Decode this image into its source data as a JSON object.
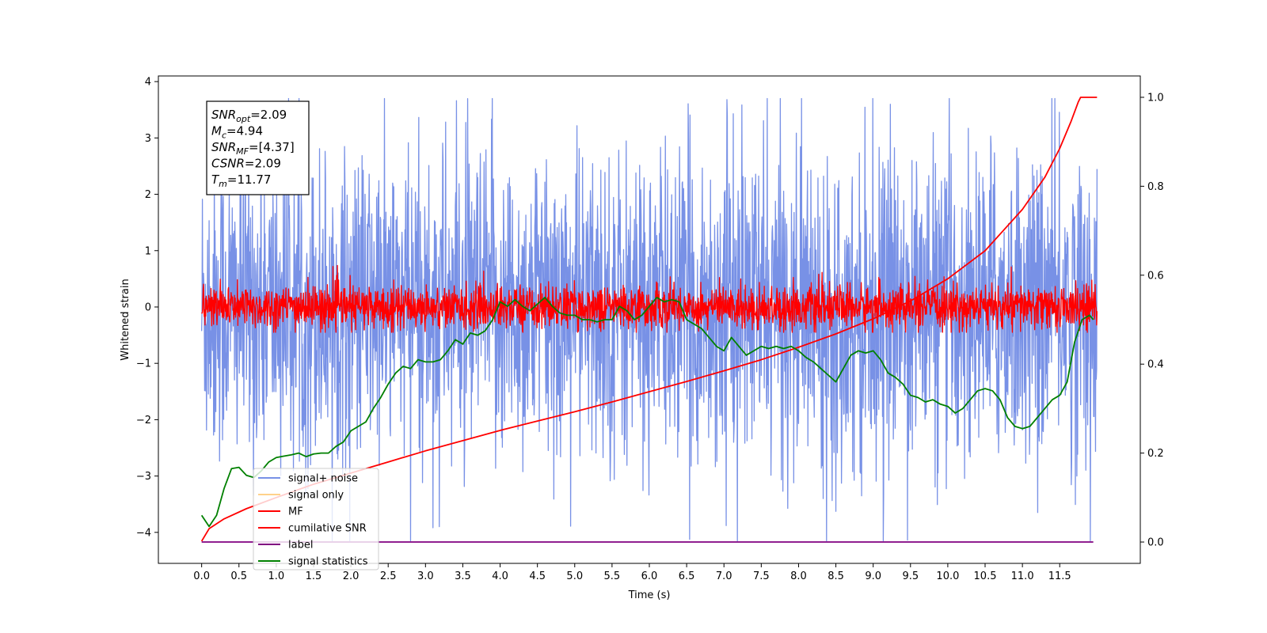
{
  "chart_data": {
    "type": "line",
    "title": "",
    "xlabel": "Time (s)",
    "ylabel": "Whitened strain",
    "y2label": "",
    "xlim": [
      -0.58,
      12.58
    ],
    "ylim": [
      -4.55,
      4.1
    ],
    "y2lim": [
      -0.048,
      1.048
    ],
    "x_ticks": [
      "0.0",
      "0.5",
      "1.0",
      "1.5",
      "2.0",
      "2.5",
      "3.0",
      "3.5",
      "4.0",
      "4.5",
      "5.0",
      "5.5",
      "6.0",
      "6.5",
      "7.0",
      "7.5",
      "8.0",
      "8.5",
      "9.0",
      "9.5",
      "10.0",
      "10.5",
      "11.0",
      "11.5"
    ],
    "y_ticks": [
      4,
      3,
      2,
      1,
      0,
      -1,
      -2,
      -3,
      -4
    ],
    "y_tick_labels": [
      "4",
      "3",
      "2",
      "1",
      "0",
      "−1",
      "−2",
      "−3",
      "−4"
    ],
    "y2_ticks": [
      1.0,
      0.8,
      0.6,
      0.4,
      0.2,
      0.0
    ],
    "y2_tick_labels": [
      "1.0",
      "0.8",
      "0.6",
      "0.4",
      "0.2",
      "0.0"
    ],
    "grid": false,
    "legend_position": "lower-left",
    "annotation": {
      "lines": [
        {
          "symbol": "SNR",
          "subscript": "opt",
          "value": "=2.09"
        },
        {
          "symbol": "M",
          "subscript": "c",
          "value": "=4.94"
        },
        {
          "symbol": "SNR",
          "subscript": "MF",
          "value": "=[4.37]"
        },
        {
          "symbol": "CSNR",
          "subscript": "",
          "value": "=2.09"
        },
        {
          "symbol": "T",
          "subscript": "m",
          "value": "=11.77"
        }
      ]
    },
    "series": [
      {
        "name": "signal+ noise",
        "color": "#7891e6",
        "axis": "left",
        "style": "noise",
        "x_range": [
          0,
          12.0
        ],
        "approx_band": [
          -2.5,
          2.5
        ],
        "peak_range": [
          -4.15,
          3.7
        ],
        "notable_spikes": [
          [
            2.8,
            -4.15
          ],
          [
            7.04,
            3.68
          ]
        ]
      },
      {
        "name": "signal only",
        "color": "#ffd18a",
        "axis": "left",
        "style": "hidden",
        "x": [
          0,
          12.0
        ],
        "y": [
          0,
          0
        ]
      },
      {
        "name": "MF",
        "color": "#ff0000",
        "axis": "left",
        "style": "noise",
        "x_range": [
          0,
          12.0
        ],
        "approx_band": [
          -0.35,
          0.35
        ],
        "peak_range": [
          -0.45,
          1.0
        ]
      },
      {
        "name": "cumilative SNR",
        "color": "#ff0000",
        "axis": "right",
        "style": "line",
        "x": [
          0.0,
          0.1,
          0.3,
          0.6,
          1.0,
          1.5,
          2.0,
          2.5,
          3.0,
          3.5,
          4.0,
          4.5,
          5.0,
          5.5,
          6.0,
          6.5,
          7.0,
          7.5,
          8.0,
          8.5,
          9.0,
          9.5,
          10.0,
          10.5,
          11.0,
          11.3,
          11.5,
          11.65,
          11.75,
          11.78,
          12.0
        ],
        "y": [
          0.002,
          0.03,
          0.052,
          0.075,
          0.1,
          0.13,
          0.155,
          0.18,
          0.205,
          0.228,
          0.251,
          0.272,
          0.293,
          0.315,
          0.338,
          0.361,
          0.385,
          0.41,
          0.438,
          0.468,
          0.502,
          0.542,
          0.592,
          0.655,
          0.748,
          0.82,
          0.885,
          0.945,
          0.99,
          1.0,
          1.0
        ]
      },
      {
        "name": "label",
        "color": "#800080",
        "axis": "right",
        "style": "line",
        "x": [
          0.0,
          11.95
        ],
        "y": [
          0.0,
          0.0
        ]
      },
      {
        "name": "signal statistics",
        "color": "#008000",
        "axis": "right",
        "style": "line",
        "x": [
          0.0,
          0.1,
          0.2,
          0.3,
          0.4,
          0.5,
          0.6,
          0.7,
          0.8,
          0.9,
          1.0,
          1.1,
          1.2,
          1.3,
          1.4,
          1.5,
          1.6,
          1.7,
          1.8,
          1.9,
          2.0,
          2.1,
          2.2,
          2.3,
          2.4,
          2.5,
          2.6,
          2.7,
          2.8,
          2.9,
          3.0,
          3.1,
          3.2,
          3.3,
          3.4,
          3.5,
          3.6,
          3.7,
          3.8,
          3.9,
          4.0,
          4.1,
          4.2,
          4.3,
          4.4,
          4.5,
          4.6,
          4.7,
          4.8,
          4.9,
          5.0,
          5.1,
          5.2,
          5.3,
          5.4,
          5.5,
          5.6,
          5.7,
          5.8,
          5.9,
          6.0,
          6.1,
          6.2,
          6.3,
          6.4,
          6.5,
          6.6,
          6.7,
          6.8,
          6.9,
          7.0,
          7.1,
          7.2,
          7.3,
          7.4,
          7.5,
          7.6,
          7.7,
          7.8,
          7.9,
          8.0,
          8.1,
          8.2,
          8.3,
          8.4,
          8.5,
          8.6,
          8.7,
          8.8,
          8.9,
          9.0,
          9.1,
          9.2,
          9.3,
          9.4,
          9.5,
          9.6,
          9.7,
          9.8,
          9.9,
          10.0,
          10.1,
          10.2,
          10.3,
          10.4,
          10.5,
          10.6,
          10.7,
          10.8,
          10.9,
          11.0,
          11.1,
          11.2,
          11.3,
          11.4,
          11.5,
          11.6,
          11.7,
          11.8,
          11.9,
          11.95
        ],
        "y": [
          0.06,
          0.035,
          0.06,
          0.12,
          0.165,
          0.168,
          0.15,
          0.145,
          0.16,
          0.18,
          0.19,
          0.193,
          0.196,
          0.2,
          0.192,
          0.198,
          0.2,
          0.2,
          0.215,
          0.225,
          0.25,
          0.26,
          0.27,
          0.3,
          0.325,
          0.355,
          0.38,
          0.395,
          0.39,
          0.41,
          0.405,
          0.405,
          0.41,
          0.43,
          0.455,
          0.445,
          0.47,
          0.465,
          0.475,
          0.5,
          0.54,
          0.53,
          0.545,
          0.53,
          0.52,
          0.535,
          0.55,
          0.53,
          0.515,
          0.51,
          0.51,
          0.5,
          0.5,
          0.495,
          0.5,
          0.5,
          0.53,
          0.52,
          0.5,
          0.51,
          0.53,
          0.55,
          0.54,
          0.545,
          0.54,
          0.5,
          0.49,
          0.48,
          0.46,
          0.44,
          0.43,
          0.46,
          0.44,
          0.42,
          0.43,
          0.44,
          0.435,
          0.44,
          0.435,
          0.44,
          0.43,
          0.415,
          0.405,
          0.39,
          0.375,
          0.36,
          0.39,
          0.42,
          0.43,
          0.425,
          0.43,
          0.41,
          0.38,
          0.37,
          0.355,
          0.33,
          0.325,
          0.315,
          0.32,
          0.31,
          0.305,
          0.29,
          0.3,
          0.32,
          0.34,
          0.345,
          0.34,
          0.32,
          0.28,
          0.26,
          0.255,
          0.26,
          0.28,
          0.3,
          0.32,
          0.33,
          0.36,
          0.45,
          0.5,
          0.51,
          0.5
        ]
      }
    ]
  }
}
